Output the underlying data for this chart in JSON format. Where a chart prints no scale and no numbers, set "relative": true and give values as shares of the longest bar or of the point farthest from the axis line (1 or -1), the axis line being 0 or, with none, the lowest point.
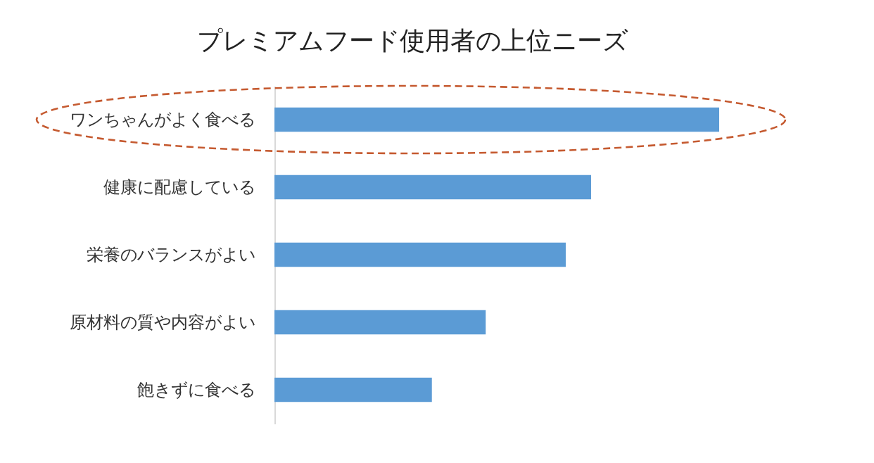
{
  "chart_data": {
    "type": "bar",
    "orientation": "horizontal",
    "relative": true,
    "title": "プレミアムフード使用者の上位ニーズ",
    "categories": [
      "ワンちゃんがよく食べる",
      "健康に配慮している",
      "栄養のバランスがよい",
      "原材料の質や内容がよい",
      "飽きずに食べる"
    ],
    "values": [
      1,
      0.712,
      0.655,
      0.475,
      0.354
    ],
    "color": "#5b9bd5"
  }
}
